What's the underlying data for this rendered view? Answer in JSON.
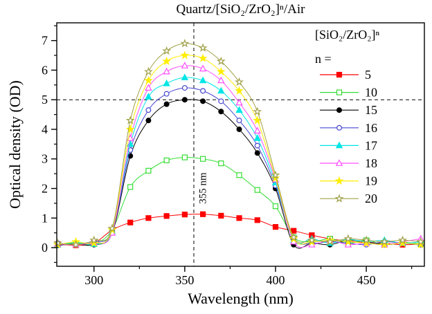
{
  "figure": {
    "title": "Quartz/[SiO₂/ZrO₂]ⁿ/Air",
    "xlabel": "Wavelength (nm)",
    "ylabel": "Optical density (OD)",
    "annotation_355": "355 nm"
  },
  "legend": {
    "title": "[SiO₂/ZrO₂]ⁿ",
    "subtitle": "n ="
  },
  "chart_data": {
    "type": "line",
    "title": "Quartz/[SiO2/ZrO2]n/Air",
    "xlabel": "Wavelength (nm)",
    "ylabel": "Optical density (OD)",
    "grid": false,
    "legend_position": "top-right",
    "xlim": [
      279.5,
      482
    ],
    "ylim": [
      -0.63,
      7.6
    ],
    "x_ticks": [
      300,
      350,
      400,
      450
    ],
    "x_minor_ticks": [
      325,
      375,
      425,
      475
    ],
    "y_ticks": [
      0,
      1,
      2,
      3,
      4,
      5,
      6,
      7
    ],
    "y_minor_ticks": [
      -0.5,
      0.5,
      1.5,
      2.5,
      3.5,
      4.5,
      5.5,
      6.5,
      7.5
    ],
    "reference_lines": {
      "vertical_x": 355,
      "horizontal_y": 5
    },
    "x": [
      280,
      290,
      300,
      310,
      320,
      330,
      340,
      350,
      360,
      370,
      380,
      390,
      400,
      410,
      420,
      430,
      440,
      450,
      460,
      470,
      480
    ],
    "series": [
      {
        "name": "5",
        "color": "#ff0000",
        "marker": "square-filled",
        "values": [
          0.12,
          0.08,
          0.15,
          0.6,
          0.85,
          1.0,
          1.07,
          1.12,
          1.13,
          1.08,
          1.0,
          0.93,
          0.7,
          0.57,
          0.42,
          0.3,
          0.22,
          0.18,
          0.15,
          0.1,
          0.12
        ]
      },
      {
        "name": "10",
        "color": "#33dd33",
        "marker": "square-open",
        "values": [
          0.1,
          0.15,
          0.12,
          0.6,
          2.05,
          2.6,
          2.95,
          3.05,
          3.0,
          2.85,
          2.45,
          1.95,
          1.4,
          0.35,
          0.2,
          0.3,
          0.15,
          0.25,
          0.1,
          0.18,
          0.12
        ]
      },
      {
        "name": "15",
        "color": "#000000",
        "marker": "circle-filled",
        "values": [
          0.08,
          0.12,
          0.1,
          0.5,
          3.1,
          4.3,
          4.85,
          5.0,
          4.95,
          4.6,
          4.0,
          3.2,
          2.0,
          0.1,
          0.15,
          0.1,
          0.25,
          0.2,
          0.1,
          0.15,
          0.1
        ]
      },
      {
        "name": "16",
        "color": "#4646d2",
        "marker": "circle-open",
        "values": [
          0.15,
          0.1,
          0.2,
          0.55,
          3.3,
          4.65,
          5.2,
          5.4,
          5.3,
          4.95,
          4.3,
          3.45,
          2.1,
          0.3,
          0.15,
          0.2,
          0.15,
          0.1,
          0.2,
          0.15,
          0.1
        ]
      },
      {
        "name": "17",
        "color": "#00e6e6",
        "marker": "triangle-filled",
        "values": [
          0.1,
          0.18,
          0.12,
          0.55,
          3.5,
          5.1,
          5.55,
          5.75,
          5.65,
          5.3,
          4.65,
          3.7,
          2.2,
          0.25,
          0.3,
          0.15,
          0.28,
          0.2,
          0.25,
          0.15,
          0.2
        ]
      },
      {
        "name": "18",
        "color": "#ff4dff",
        "marker": "triangle-open",
        "values": [
          0.12,
          0.1,
          0.18,
          0.5,
          3.7,
          5.4,
          5.95,
          6.15,
          6.05,
          5.65,
          4.9,
          3.95,
          2.3,
          0.2,
          0.1,
          0.25,
          0.1,
          0.15,
          0.1,
          0.2,
          0.3
        ]
      },
      {
        "name": "19",
        "color": "#ffee00",
        "marker": "star-filled",
        "values": [
          0.1,
          0.2,
          0.15,
          0.6,
          4.0,
          5.65,
          6.3,
          6.5,
          6.4,
          5.95,
          5.3,
          4.3,
          2.35,
          0.3,
          0.2,
          0.25,
          0.2,
          0.15,
          0.1,
          0.15,
          0.1
        ]
      },
      {
        "name": "20",
        "color": "#a0a048",
        "marker": "star-open",
        "values": [
          0.15,
          0.1,
          0.25,
          0.65,
          4.3,
          5.95,
          6.65,
          6.9,
          6.75,
          6.3,
          5.6,
          4.6,
          2.45,
          0.35,
          0.25,
          0.2,
          0.3,
          0.25,
          0.2,
          0.25,
          0.2
        ]
      }
    ]
  }
}
